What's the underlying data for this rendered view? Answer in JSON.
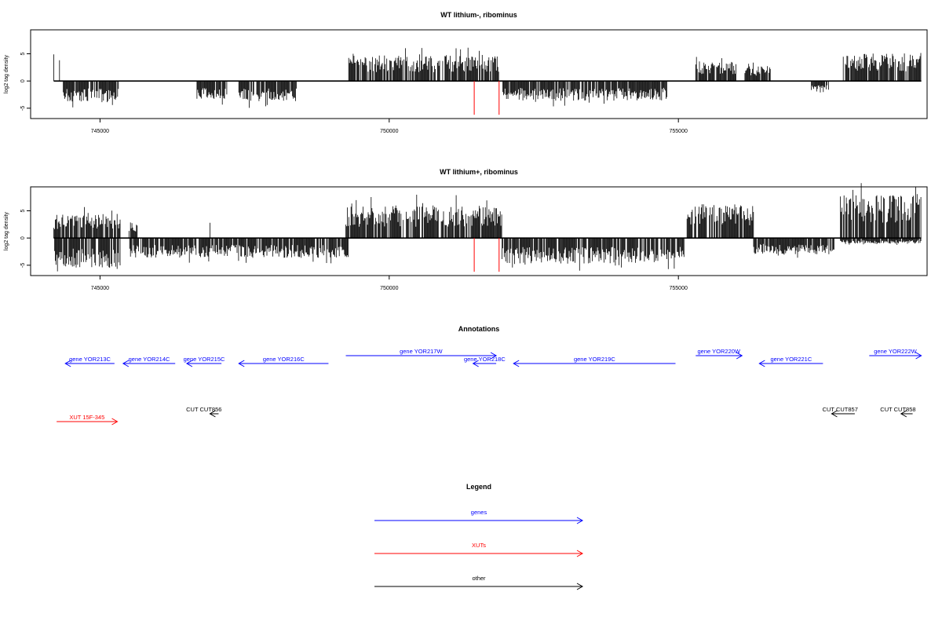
{
  "colors": {
    "genes": "#0000ff",
    "xuts": "#ff0000",
    "other": "#000000",
    "marker": "#ff0000"
  },
  "chart_data": [
    {
      "type": "bar",
      "title": "WT lithium-, ribominus",
      "ylabel": "log2 tag density",
      "xlim": [
        743800,
        759300
      ],
      "ylim": [
        -6.9,
        9.4
      ],
      "x_ticks": [
        745000,
        750000,
        755000
      ],
      "x_tick_labels": [
        "745000",
        "750000",
        "755000"
      ],
      "y_ticks": [
        -5,
        0,
        5
      ],
      "y_tick_labels": [
        "-5",
        "0",
        "5"
      ],
      "markers": {
        "x": [
          751470,
          751900
        ],
        "ymin": -6.2
      },
      "segments": [
        {
          "x0": 744200,
          "x1": 744200,
          "sign": 1,
          "mag": 4.9
        },
        {
          "x0": 744300,
          "x1": 744300,
          "sign": 1,
          "mag": 3.8
        },
        {
          "x0": 744350,
          "x1": 745350,
          "sign": -1,
          "mag": 3.0
        },
        {
          "x0": 746650,
          "x1": 747200,
          "sign": -1,
          "mag": 2.6
        },
        {
          "x0": 747400,
          "x1": 748400,
          "sign": -1,
          "mag": 2.9
        },
        {
          "x0": 749300,
          "x1": 751900,
          "sign": 1,
          "mag": 3.6
        },
        {
          "x0": 751950,
          "x1": 754800,
          "sign": -1,
          "mag": 2.8
        },
        {
          "x0": 755300,
          "x1": 756000,
          "sign": 1,
          "mag": 2.8
        },
        {
          "x0": 756150,
          "x1": 756600,
          "sign": 1,
          "mag": 2.2
        },
        {
          "x0": 757300,
          "x1": 757600,
          "sign": -1,
          "mag": 1.7
        },
        {
          "x0": 757850,
          "x1": 759200,
          "sign": 1,
          "mag": 3.9
        }
      ]
    },
    {
      "type": "bar",
      "title": "WT lithium+, ribominus",
      "ylabel": "log2 tag density",
      "xlim": [
        743800,
        759300
      ],
      "ylim": [
        -6.9,
        9.4
      ],
      "x_ticks": [
        745000,
        750000,
        755000
      ],
      "x_tick_labels": [
        "745000",
        "750000",
        "755000"
      ],
      "y_ticks": [
        -5,
        0,
        5
      ],
      "y_tick_labels": [
        "-5",
        "0",
        "5"
      ],
      "markers": {
        "x": [
          751470,
          751900
        ],
        "ymin": -6.2
      },
      "segments": [
        {
          "x0": 744200,
          "x1": 745350,
          "sign": 1,
          "mag": 3.4
        },
        {
          "x0": 744200,
          "x1": 745350,
          "sign": -1,
          "mag": 4.3
        },
        {
          "x0": 745500,
          "x1": 745650,
          "sign": 1,
          "mag": 2.2
        },
        {
          "x0": 745500,
          "x1": 749300,
          "sign": -1,
          "mag": 2.8
        },
        {
          "x0": 746900,
          "x1": 746900,
          "sign": 1,
          "mag": 2.8
        },
        {
          "x0": 749250,
          "x1": 751950,
          "sign": 1,
          "mag": 4.6
        },
        {
          "x0": 751950,
          "x1": 755100,
          "sign": -1,
          "mag": 3.6
        },
        {
          "x0": 755150,
          "x1": 756300,
          "sign": 1,
          "mag": 4.8
        },
        {
          "x0": 756300,
          "x1": 757700,
          "sign": -1,
          "mag": 2.3
        },
        {
          "x0": 757800,
          "x1": 759200,
          "sign": 1,
          "mag": 6.2
        },
        {
          "x0": 757800,
          "x1": 759200,
          "sign": -1,
          "mag": 0.8
        }
      ]
    }
  ],
  "annotations": {
    "title": "Annotations",
    "items": [
      {
        "label": "gene YOR213C",
        "type": "gene",
        "strand": "-",
        "x0": 744400,
        "x1": 745250,
        "row": 0
      },
      {
        "label": "gene YOR214C",
        "type": "gene",
        "strand": "-",
        "x0": 745400,
        "x1": 746300,
        "row": 0
      },
      {
        "label": "gene YOR215C",
        "type": "gene",
        "strand": "-",
        "x0": 746500,
        "x1": 747100,
        "row": 0
      },
      {
        "label": "gene YOR216C",
        "type": "gene",
        "strand": "-",
        "x0": 747400,
        "x1": 748950,
        "row": 0
      },
      {
        "label": "gene YOR217W",
        "type": "gene",
        "strand": "+",
        "x0": 749250,
        "x1": 751850,
        "row": 1
      },
      {
        "label": "gene YOR218C",
        "type": "gene",
        "strand": "-",
        "x0": 751450,
        "x1": 751850,
        "row": 0
      },
      {
        "label": "gene YOR219C",
        "type": "gene",
        "strand": "-",
        "x0": 752150,
        "x1": 754950,
        "row": 0
      },
      {
        "label": "gene YOR220W",
        "type": "gene",
        "strand": "+",
        "x0": 755300,
        "x1": 756100,
        "row": 1
      },
      {
        "label": "gene YOR221C",
        "type": "gene",
        "strand": "-",
        "x0": 756400,
        "x1": 757500,
        "row": 0
      },
      {
        "label": "gene YOR222W",
        "type": "gene",
        "strand": "+",
        "x0": 758300,
        "x1": 759200,
        "row": 1
      },
      {
        "label": "XUT 15F-345",
        "type": "xut",
        "strand": "+",
        "x0": 744250,
        "x1": 745300,
        "row": 3
      },
      {
        "label": "CUT CUT856",
        "type": "other",
        "strand": "-",
        "x0": 746900,
        "x1": 747050,
        "row": 2
      },
      {
        "label": "CUT CUT857",
        "type": "other",
        "strand": "-",
        "x0": 757650,
        "x1": 758050,
        "row": 2
      },
      {
        "label": "CUT CUT858",
        "type": "other",
        "strand": "-",
        "x0": 758850,
        "x1": 759050,
        "row": 2
      }
    ]
  },
  "legend": {
    "title": "Legend",
    "items": [
      {
        "label": "genes",
        "type": "gene"
      },
      {
        "label": "XUTs",
        "type": "xut"
      },
      {
        "label": "other",
        "type": "other"
      }
    ]
  }
}
